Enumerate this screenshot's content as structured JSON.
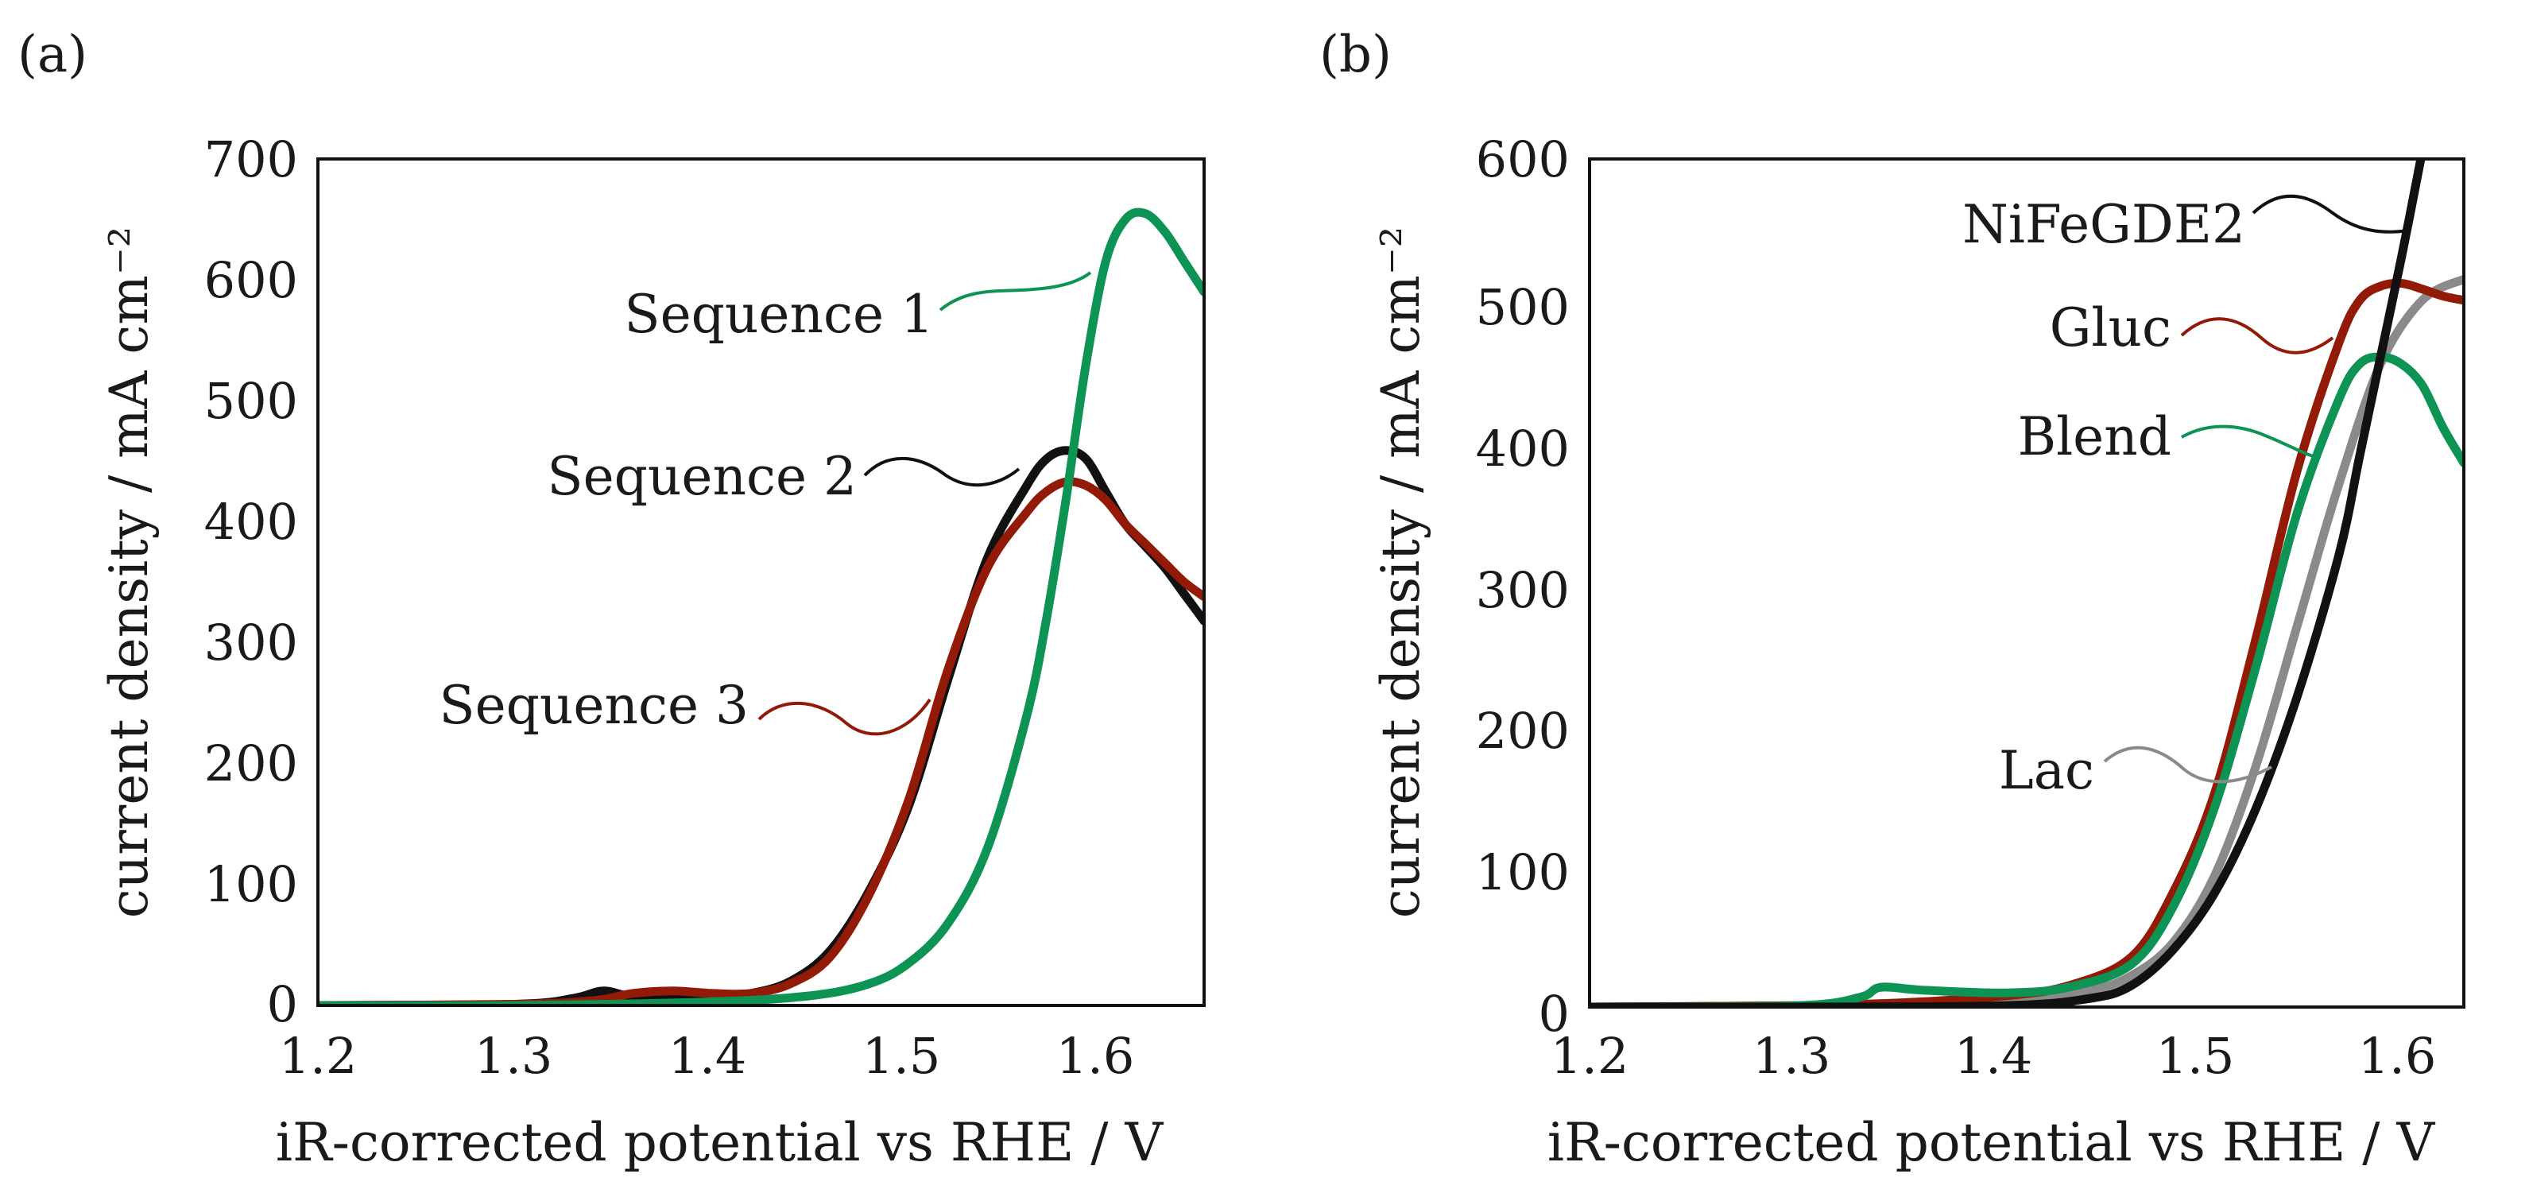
{
  "colors": {
    "black": "#111111",
    "green": "#0d9455",
    "red": "#921a06",
    "gray": "#8a8a8a"
  },
  "chart_data": [
    {
      "id": "a",
      "panel_label": "(a)",
      "type": "line",
      "xlabel": "iR-corrected potential vs RHE / V",
      "ylabel": "current density / mA cm⁻²",
      "xlim": [
        1.2,
        1.65
      ],
      "ylim": [
        0,
        700
      ],
      "xticks": [
        1.2,
        1.3,
        1.4,
        1.5,
        1.6
      ],
      "xtick_labels": [
        "1.2",
        "1.3",
        "1.4",
        "1.5",
        "1.6"
      ],
      "yticks": [
        0,
        100,
        200,
        300,
        400,
        500,
        600,
        700
      ],
      "ytick_labels": [
        "0",
        "100",
        "200",
        "300",
        "400",
        "500",
        "600",
        "700"
      ],
      "series": [
        {
          "name": "Sequence 2",
          "color": "black",
          "x": [
            1.2,
            1.3,
            1.33,
            1.345,
            1.36,
            1.38,
            1.4,
            1.42,
            1.44,
            1.46,
            1.48,
            1.5,
            1.52,
            1.54,
            1.56,
            1.57,
            1.58,
            1.59,
            1.6,
            1.61,
            1.62,
            1.63,
            1.64,
            1.65
          ],
          "y": [
            0,
            1,
            6,
            12,
            7,
            8,
            8,
            10,
            20,
            45,
            95,
            165,
            270,
            370,
            430,
            452,
            459,
            452,
            425,
            398,
            380,
            362,
            340,
            318
          ]
        },
        {
          "name": "Sequence 3",
          "color": "red",
          "x": [
            1.2,
            1.3,
            1.34,
            1.36,
            1.38,
            1.4,
            1.42,
            1.44,
            1.46,
            1.48,
            1.5,
            1.52,
            1.54,
            1.56,
            1.57,
            1.58,
            1.59,
            1.6,
            1.61,
            1.62,
            1.63,
            1.64,
            1.65
          ],
          "y": [
            0,
            1,
            4,
            10,
            12,
            10,
            10,
            18,
            40,
            92,
            170,
            278,
            362,
            408,
            425,
            433,
            430,
            418,
            398,
            382,
            366,
            350,
            338
          ]
        },
        {
          "name": "Sequence 1",
          "color": "green",
          "x": [
            1.2,
            1.3,
            1.4,
            1.45,
            1.48,
            1.5,
            1.52,
            1.54,
            1.56,
            1.57,
            1.58,
            1.59,
            1.6,
            1.61,
            1.62,
            1.63,
            1.64,
            1.65
          ],
          "y": [
            0,
            0,
            3,
            8,
            18,
            35,
            68,
            130,
            240,
            320,
            420,
            530,
            615,
            650,
            655,
            640,
            615,
            590
          ]
        }
      ],
      "annotations": [
        {
          "text": "Sequence 1",
          "series": "Sequence 1"
        },
        {
          "text": "Sequence 2",
          "series": "Sequence 2"
        },
        {
          "text": "Sequence 3",
          "series": "Sequence 3"
        }
      ]
    },
    {
      "id": "b",
      "panel_label": "(b)",
      "type": "line",
      "xlabel": "iR-corrected potential vs RHE / V",
      "ylabel": "current density / mA cm⁻²",
      "xlim": [
        1.2,
        1.62
      ],
      "ylim": [
        0,
        600
      ],
      "xticks": [
        1.2,
        1.3,
        1.4,
        1.5,
        1.6
      ],
      "xtick_labels": [
        "1.2",
        "1.3",
        "1.4",
        "1.5",
        "1.6"
      ],
      "yticks": [
        0,
        100,
        200,
        300,
        400,
        500,
        600
      ],
      "ytick_labels": [
        "0",
        "100",
        "200",
        "300",
        "400",
        "500",
        "600"
      ],
      "series": [
        {
          "name": "Lac",
          "color": "gray",
          "x": [
            1.2,
            1.3,
            1.35,
            1.4,
            1.44,
            1.46,
            1.48,
            1.5,
            1.52,
            1.54,
            1.56,
            1.58,
            1.6,
            1.62
          ],
          "y": [
            0,
            1,
            3,
            6,
            12,
            22,
            45,
            92,
            170,
            270,
            370,
            455,
            500,
            515
          ]
        },
        {
          "name": "Gluc",
          "color": "red",
          "x": [
            1.2,
            1.3,
            1.35,
            1.4,
            1.43,
            1.46,
            1.48,
            1.5,
            1.52,
            1.54,
            1.56,
            1.57,
            1.58,
            1.59,
            1.6,
            1.61,
            1.62
          ],
          "y": [
            0,
            1,
            3,
            8,
            15,
            35,
            80,
            150,
            260,
            380,
            470,
            500,
            510,
            512,
            508,
            503,
            500
          ]
        },
        {
          "name": "Blend",
          "color": "green",
          "x": [
            1.2,
            1.3,
            1.33,
            1.34,
            1.36,
            1.4,
            1.43,
            1.46,
            1.48,
            1.5,
            1.52,
            1.54,
            1.56,
            1.57,
            1.58,
            1.59,
            1.6,
            1.61,
            1.62
          ],
          "y": [
            0,
            1,
            7,
            14,
            12,
            10,
            14,
            30,
            70,
            140,
            240,
            350,
            430,
            455,
            460,
            455,
            440,
            410,
            385
          ]
        },
        {
          "name": "NiFeGDE2",
          "color": "black",
          "x": [
            1.2,
            1.3,
            1.4,
            1.44,
            1.46,
            1.48,
            1.5,
            1.52,
            1.54,
            1.56,
            1.57,
            1.58,
            1.59,
            1.6
          ],
          "y": [
            0,
            0,
            1,
            6,
            15,
            40,
            80,
            140,
            220,
            320,
            390,
            460,
            530,
            605
          ]
        }
      ],
      "annotations": [
        {
          "text": "NiFeGDE2",
          "series": "NiFeGDE2"
        },
        {
          "text": "Gluc",
          "series": "Gluc"
        },
        {
          "text": "Blend",
          "series": "Blend"
        },
        {
          "text": "Lac",
          "series": "Lac"
        }
      ]
    }
  ]
}
